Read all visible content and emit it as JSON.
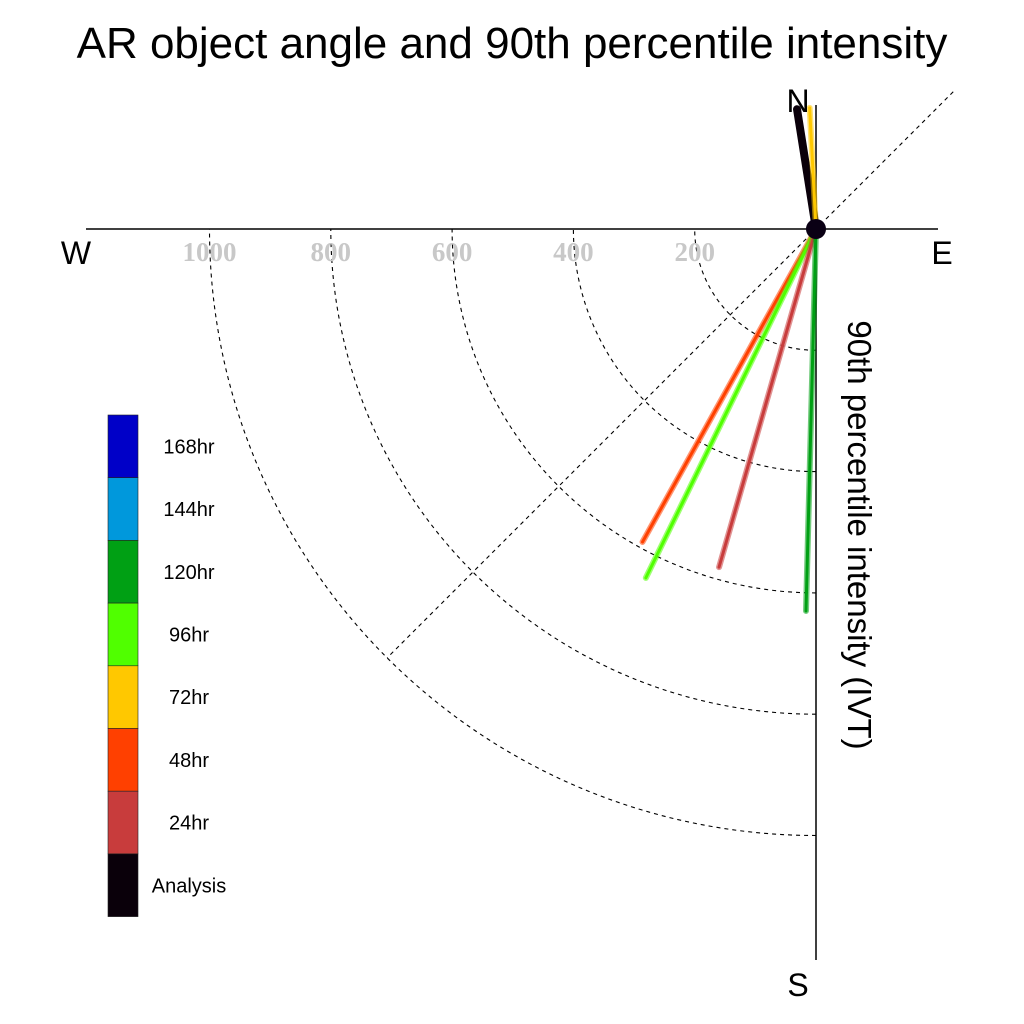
{
  "chart_data": {
    "type": "polar-line",
    "title": "AR object angle and 90th percentile intensity",
    "radial_axis_label": "90th percentile intensity (IVT)",
    "compass_labels": {
      "north": "N",
      "south": "S",
      "east": "E",
      "west": "W"
    },
    "radial_ticks": [
      200,
      400,
      600,
      800,
      1000
    ],
    "radial_range": [
      0,
      1000
    ],
    "angle_unit": "degrees clockwise from north",
    "grid": true,
    "legend_position": "left",
    "legend": [
      {
        "label": "168hr",
        "color": "#0000c8"
      },
      {
        "label": "144hr",
        "color": "#0098dc"
      },
      {
        "label": "120hr",
        "color": "#00a014"
      },
      {
        "label": "96hr",
        "color": "#50ff00"
      },
      {
        "label": "72hr",
        "color": "#ffc800"
      },
      {
        "label": "48hr",
        "color": "#ff4000"
      },
      {
        "label": "24hr",
        "color": "#c83c3c"
      },
      {
        "label": "Analysis",
        "color": "#0a000a"
      }
    ],
    "series": [
      {
        "name": "Analysis",
        "color": "#0a000a",
        "angle": 351,
        "value": 200
      },
      {
        "name": "72hr",
        "color": "#ffc800",
        "angle": 357,
        "value": 200
      },
      {
        "name": "48hr",
        "color": "#ff4000",
        "angle": 209,
        "value": 590
      },
      {
        "name": "96hr",
        "color": "#50ff00",
        "angle": 206,
        "value": 640
      },
      {
        "name": "24hr",
        "color": "#c83c3c",
        "angle": 196,
        "value": 580
      },
      {
        "name": "120hr",
        "color": "#00a014",
        "angle": 181.5,
        "value": 630
      }
    ]
  }
}
